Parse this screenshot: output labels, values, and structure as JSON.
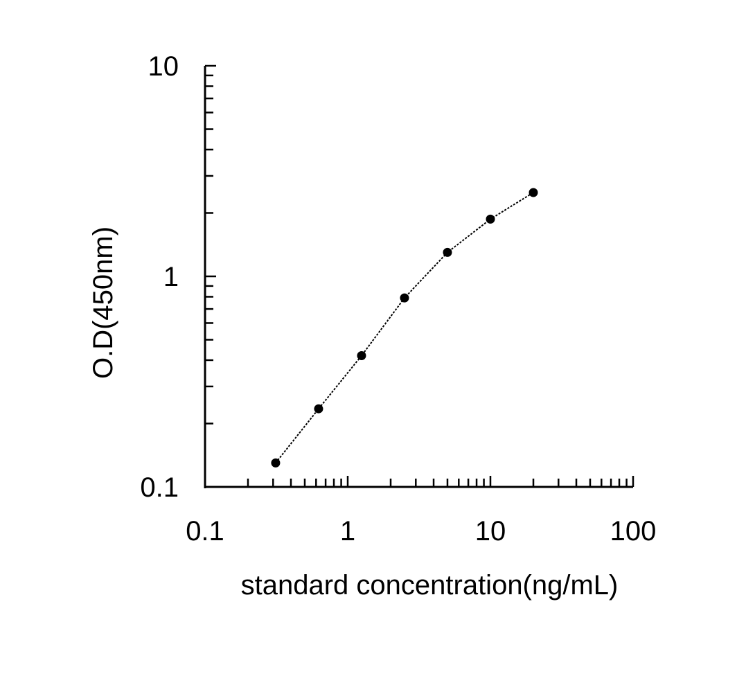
{
  "chart_data": {
    "type": "line",
    "xlabel": "standard concentration(ng/mL)",
    "ylabel": "O.D(450nm)",
    "x_scale": "log",
    "y_scale": "log",
    "xlim": [
      0.1,
      100
    ],
    "ylim": [
      0.1,
      10
    ],
    "x_ticks": [
      "0.1",
      "1",
      "10",
      "100"
    ],
    "y_ticks": [
      "0.1",
      "1",
      "10"
    ],
    "grid": false,
    "marker": "circle",
    "line_style": "dotted",
    "color": "#000000",
    "series": [
      {
        "x": [
          0.3125,
          0.625,
          1.25,
          2.5,
          5,
          10,
          20
        ],
        "y": [
          0.13,
          0.235,
          0.42,
          0.79,
          1.3,
          1.87,
          2.5
        ]
      }
    ]
  }
}
